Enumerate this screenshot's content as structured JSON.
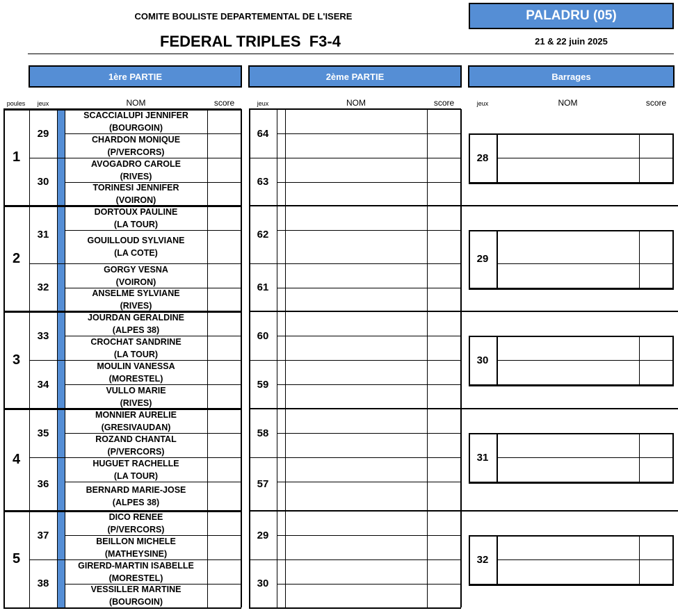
{
  "header": {
    "org": "COMITE BOULISTE DEPARTEMENTAL DE L'ISERE",
    "title": "FEDERAL TRIPLES  F3-4",
    "venue": "PALADRU (05)",
    "date": "21 & 22 juin 2025"
  },
  "sections": {
    "first": "1ère PARTIE",
    "second": "2ème PARTIE",
    "barrages": "Barrages"
  },
  "columns": {
    "poules": "poules",
    "jeux": "jeux",
    "nom": "NOM",
    "score": "score"
  },
  "accent": "#558ed5",
  "poules": [
    {
      "label": "1",
      "games": [
        {
          "jeu": "29",
          "players": [
            {
              "name": "SCACCIALUPI JENNIFER",
              "club": "(BOURGOIN)"
            },
            {
              "name": "CHARDON MONIQUE",
              "club": "(P/VERCORS)"
            }
          ]
        },
        {
          "jeu": "30",
          "players": [
            {
              "name": "AVOGADRO CAROLE",
              "club": "(RIVES)"
            },
            {
              "name": "TORINESI JENNIFER",
              "club": "(VOIRON)"
            }
          ]
        }
      ]
    },
    {
      "label": "2",
      "games": [
        {
          "jeu": "31",
          "players": [
            {
              "name": "DORTOUX PAULINE",
              "club": "(LA TOUR)"
            },
            {
              "name": "GOUILLOUD SYLVIANE",
              "club": "(LA COTE)"
            }
          ]
        },
        {
          "jeu": "32",
          "players": [
            {
              "name": "GORGY VESNA",
              "club": "(VOIRON)"
            },
            {
              "name": "ANSELME SYLVIANE",
              "club": "(RIVES)"
            }
          ]
        }
      ]
    },
    {
      "label": "3",
      "games": [
        {
          "jeu": "33",
          "players": [
            {
              "name": "JOURDAN GERALDINE",
              "club": "(ALPES 38)"
            },
            {
              "name": "CROCHAT SANDRINE",
              "club": "(LA TOUR)"
            }
          ]
        },
        {
          "jeu": "34",
          "players": [
            {
              "name": "MOULIN VANESSA",
              "club": "(MORESTEL)"
            },
            {
              "name": "VULLO MARIE",
              "club": "(RIVES)"
            }
          ]
        }
      ]
    },
    {
      "label": "4",
      "games": [
        {
          "jeu": "35",
          "players": [
            {
              "name": "MONNIER AURELIE",
              "club": "(GRESIVAUDAN)"
            },
            {
              "name": "ROZAND CHANTAL",
              "club": "(P/VERCORS)"
            }
          ]
        },
        {
          "jeu": "36",
          "players": [
            {
              "name": "HUGUET RACHELLE",
              "club": "(LA TOUR)"
            },
            {
              "name": "BERNARD MARIE-JOSE",
              "club": "(ALPES 38)"
            }
          ]
        }
      ]
    },
    {
      "label": "5",
      "games": [
        {
          "jeu": "37",
          "players": [
            {
              "name": "DICO RENEE",
              "club": "(P/VERCORS)"
            },
            {
              "name": "BEILLON MICHELE",
              "club": "(MATHEYSINE)"
            }
          ]
        },
        {
          "jeu": "38",
          "players": [
            {
              "name": "GIRERD-MARTIN ISABELLE",
              "club": "(MORESTEL)"
            },
            {
              "name": "VESSILLER MARTINE",
              "club": "(BOURGOIN)"
            }
          ]
        }
      ]
    }
  ],
  "second_jeux": [
    "64",
    "63",
    "62",
    "61",
    "60",
    "59",
    "58",
    "57",
    "29",
    "30"
  ],
  "barrage_jeux": [
    "28",
    "29",
    "30",
    "31",
    "32"
  ]
}
